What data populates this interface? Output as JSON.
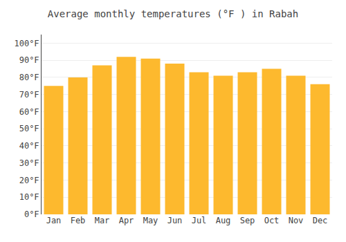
{
  "chart_data": {
    "type": "bar",
    "title": "Average monthly temperatures (°F ) in Rabah",
    "categories": [
      "Jan",
      "Feb",
      "Mar",
      "Apr",
      "May",
      "Jun",
      "Jul",
      "Aug",
      "Sep",
      "Oct",
      "Nov",
      "Dec"
    ],
    "values": [
      75,
      80,
      87,
      92,
      91,
      88,
      83,
      81,
      83,
      85,
      81,
      76
    ],
    "color": "#FDB92E",
    "ylim": [
      0,
      105
    ],
    "yticks": [
      {
        "value": 0,
        "label": "0°F"
      },
      {
        "value": 10,
        "label": "10°F"
      },
      {
        "value": 20,
        "label": "20°F"
      },
      {
        "value": 30,
        "label": "30°F"
      },
      {
        "value": 40,
        "label": "40°F"
      },
      {
        "value": 50,
        "label": "50°F"
      },
      {
        "value": 60,
        "label": "60°F"
      },
      {
        "value": 70,
        "label": "70°F"
      },
      {
        "value": 80,
        "label": "80°F"
      },
      {
        "value": 90,
        "label": "90°F"
      },
      {
        "value": 100,
        "label": "100°F"
      }
    ],
    "grid": true
  }
}
